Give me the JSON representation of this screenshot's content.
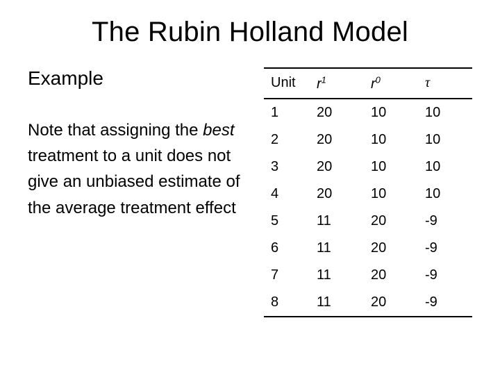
{
  "title": "The Rubin Holland Model",
  "subtitle": "Example",
  "note_pre_italic": "Note that assigning the ",
  "note_italic": "best",
  "note_post_italic": " treatment to a unit does not give an unbiased estimate of the average treatment effect",
  "table": {
    "type": "table",
    "columns": [
      "Unit",
      "r1",
      "r0",
      "τ"
    ],
    "column_html": [
      "Unit",
      "<span class='sup'>r<sup>1</sup></span>",
      "<span class='sup'>r<sup>0</sup></span>",
      "<span class='tau'>τ</span>"
    ],
    "rows": [
      [
        "1",
        "20",
        "10",
        "10"
      ],
      [
        "2",
        "20",
        "10",
        "10"
      ],
      [
        "3",
        "20",
        "10",
        "10"
      ],
      [
        "4",
        "20",
        "10",
        "10"
      ],
      [
        "5",
        "11",
        "20",
        "-9"
      ],
      [
        "6",
        "11",
        "20",
        "-9"
      ],
      [
        "7",
        "11",
        "20",
        "-9"
      ],
      [
        "8",
        "11",
        "20",
        "-9"
      ]
    ],
    "header_fontsize": 20,
    "cell_fontsize": 20,
    "border_color": "#000000",
    "background_color": "#ffffff",
    "text_color": "#000000"
  },
  "styling": {
    "title_fontsize": 40,
    "subtitle_fontsize": 28,
    "note_fontsize": 24,
    "font_family": "Arial",
    "background_color": "#ffffff",
    "text_color": "#000000"
  }
}
